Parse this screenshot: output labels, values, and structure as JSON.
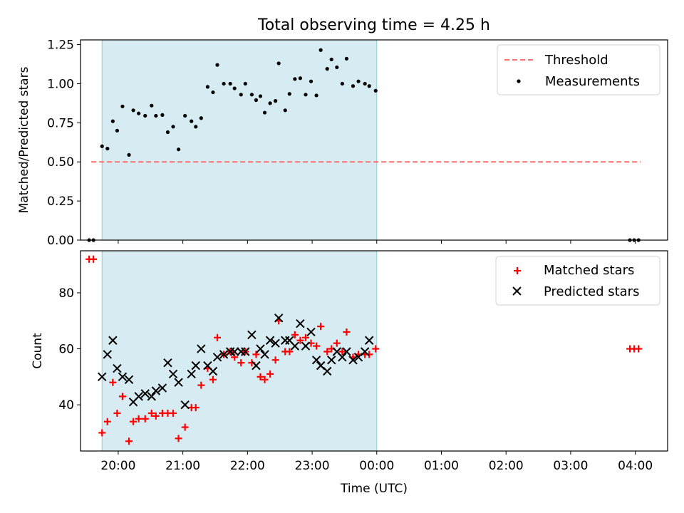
{
  "title": "Total observing time = 4.25 h",
  "colors": {
    "shade": "#add8e6",
    "threshold": "#ff6f6f",
    "measurement": "#000000",
    "matched": "#ff0000",
    "predicted": "#000000"
  },
  "chart_data": [
    {
      "type": "scatter",
      "panel": "top",
      "ylabel": "Matched/Predicted stars",
      "ylim": [
        0,
        1.28
      ],
      "yticks": [
        "0.00",
        "0.25",
        "0.50",
        "0.75",
        "1.00",
        "1.25"
      ],
      "xlim": [
        "19:25",
        "04:30"
      ],
      "shaded_region": [
        "19:45",
        "00:00"
      ],
      "legend": {
        "position": "top-right",
        "entries": [
          "Threshold",
          "Measurements"
        ]
      },
      "threshold": {
        "name": "Threshold",
        "value": 0.5,
        "x_range": [
          "19:35",
          "04:05"
        ],
        "style": "dashed"
      },
      "series": [
        {
          "name": "Measurements",
          "marker": "dot",
          "points": [
            [
              "19:33",
              0.0
            ],
            [
              "19:37",
              0.0
            ],
            [
              "19:45",
              0.6
            ],
            [
              "19:50",
              0.585
            ],
            [
              "19:55",
              0.76
            ],
            [
              "19:59",
              0.7
            ],
            [
              "20:04",
              0.855
            ],
            [
              "20:10",
              0.545
            ],
            [
              "20:14",
              0.83
            ],
            [
              "20:19",
              0.81
            ],
            [
              "20:25",
              0.795
            ],
            [
              "20:31",
              0.86
            ],
            [
              "20:35",
              0.795
            ],
            [
              "20:41",
              0.8
            ],
            [
              "20:46",
              0.69
            ],
            [
              "20:51",
              0.725
            ],
            [
              "20:56",
              0.58
            ],
            [
              "21:02",
              0.795
            ],
            [
              "21:08",
              0.76
            ],
            [
              "21:12",
              0.725
            ],
            [
              "21:17",
              0.78
            ],
            [
              "21:23",
              0.98
            ],
            [
              "21:28",
              0.945
            ],
            [
              "21:32",
              1.12
            ],
            [
              "21:38",
              1.0
            ],
            [
              "21:44",
              1.0
            ],
            [
              "21:48",
              0.97
            ],
            [
              "21:54",
              0.93
            ],
            [
              "21:58",
              1.0
            ],
            [
              "22:04",
              0.93
            ],
            [
              "22:08",
              0.895
            ],
            [
              "22:12",
              0.92
            ],
            [
              "22:16",
              0.815
            ],
            [
              "22:21",
              0.875
            ],
            [
              "22:26",
              0.89
            ],
            [
              "22:29",
              1.13
            ],
            [
              "22:35",
              0.83
            ],
            [
              "22:39",
              0.935
            ],
            [
              "22:44",
              1.03
            ],
            [
              "22:49",
              1.035
            ],
            [
              "22:54",
              0.93
            ],
            [
              "22:59",
              1.015
            ],
            [
              "23:04",
              0.925
            ],
            [
              "23:08",
              1.215
            ],
            [
              "23:14",
              1.095
            ],
            [
              "23:18",
              1.155
            ],
            [
              "23:23",
              1.105
            ],
            [
              "23:28",
              1.0
            ],
            [
              "23:32",
              1.16
            ],
            [
              "23:38",
              0.985
            ],
            [
              "23:43",
              1.015
            ],
            [
              "23:49",
              1.0
            ],
            [
              "23:53",
              0.985
            ],
            [
              "23:59",
              0.955
            ],
            [
              "03:55",
              0.0
            ],
            [
              "03:59",
              0.0
            ],
            [
              "04:03",
              0.0
            ]
          ]
        }
      ]
    },
    {
      "type": "scatter",
      "panel": "bottom",
      "xlabel": "Time (UTC)",
      "ylabel": "Count",
      "ylim": [
        23.5,
        95
      ],
      "yticks": [
        "40",
        "60",
        "80"
      ],
      "xlim": [
        "19:25",
        "04:30"
      ],
      "xticks": [
        "20:00",
        "21:00",
        "22:00",
        "23:00",
        "00:00",
        "01:00",
        "02:00",
        "03:00",
        "04:00"
      ],
      "shaded_region": [
        "19:45",
        "00:00"
      ],
      "legend": {
        "position": "top-right",
        "entries": [
          "Matched stars",
          "Predicted stars"
        ]
      },
      "series": [
        {
          "name": "Matched stars",
          "marker": "plus",
          "points": [
            [
              "19:33",
              92
            ],
            [
              "19:37",
              92
            ],
            [
              "19:45",
              30
            ],
            [
              "19:50",
              34
            ],
            [
              "19:55",
              48
            ],
            [
              "19:59",
              37
            ],
            [
              "20:04",
              43
            ],
            [
              "20:10",
              27
            ],
            [
              "20:14",
              34
            ],
            [
              "20:19",
              35
            ],
            [
              "20:25",
              35
            ],
            [
              "20:31",
              37
            ],
            [
              "20:35",
              36
            ],
            [
              "20:41",
              37
            ],
            [
              "20:46",
              37
            ],
            [
              "20:51",
              37
            ],
            [
              "20:56",
              28
            ],
            [
              "21:02",
              32
            ],
            [
              "21:08",
              39
            ],
            [
              "21:12",
              39
            ],
            [
              "21:17",
              47
            ],
            [
              "21:23",
              53
            ],
            [
              "21:28",
              49
            ],
            [
              "21:32",
              64
            ],
            [
              "21:38",
              58
            ],
            [
              "21:44",
              59
            ],
            [
              "21:48",
              57
            ],
            [
              "21:54",
              55
            ],
            [
              "21:58",
              59
            ],
            [
              "22:04",
              55
            ],
            [
              "22:08",
              58
            ],
            [
              "22:12",
              50
            ],
            [
              "22:16",
              49
            ],
            [
              "22:21",
              51
            ],
            [
              "22:26",
              56
            ],
            [
              "22:29",
              70
            ],
            [
              "22:35",
              59
            ],
            [
              "22:39",
              59
            ],
            [
              "22:44",
              65
            ],
            [
              "22:49",
              63
            ],
            [
              "22:54",
              64
            ],
            [
              "22:59",
              62
            ],
            [
              "23:04",
              61
            ],
            [
              "23:08",
              68
            ],
            [
              "23:14",
              59
            ],
            [
              "23:18",
              60
            ],
            [
              "23:23",
              62
            ],
            [
              "23:28",
              59
            ],
            [
              "23:32",
              66
            ],
            [
              "23:38",
              57
            ],
            [
              "23:43",
              58
            ],
            [
              "23:49",
              58
            ],
            [
              "23:53",
              58
            ],
            [
              "23:59",
              60
            ],
            [
              "03:55",
              60
            ],
            [
              "03:59",
              60
            ],
            [
              "04:03",
              60
            ]
          ]
        },
        {
          "name": "Predicted stars",
          "marker": "x",
          "points": [
            [
              "19:45",
              50
            ],
            [
              "19:50",
              58
            ],
            [
              "19:55",
              63
            ],
            [
              "19:59",
              53
            ],
            [
              "20:04",
              50
            ],
            [
              "20:10",
              49
            ],
            [
              "20:14",
              41
            ],
            [
              "20:19",
              43
            ],
            [
              "20:25",
              44
            ],
            [
              "20:31",
              43
            ],
            [
              "20:35",
              45
            ],
            [
              "20:41",
              46
            ],
            [
              "20:46",
              55
            ],
            [
              "20:51",
              51
            ],
            [
              "20:56",
              48
            ],
            [
              "21:02",
              40
            ],
            [
              "21:08",
              51
            ],
            [
              "21:12",
              54
            ],
            [
              "21:17",
              60
            ],
            [
              "21:23",
              54
            ],
            [
              "21:28",
              52
            ],
            [
              "21:32",
              57
            ],
            [
              "21:38",
              58
            ],
            [
              "21:44",
              59
            ],
            [
              "21:48",
              59
            ],
            [
              "21:54",
              59
            ],
            [
              "21:58",
              59
            ],
            [
              "22:04",
              65
            ],
            [
              "22:08",
              54
            ],
            [
              "22:12",
              60
            ],
            [
              "22:16",
              58
            ],
            [
              "22:21",
              63
            ],
            [
              "22:26",
              62
            ],
            [
              "22:29",
              71
            ],
            [
              "22:35",
              63
            ],
            [
              "22:39",
              63
            ],
            [
              "22:44",
              61
            ],
            [
              "22:49",
              69
            ],
            [
              "22:54",
              61
            ],
            [
              "22:59",
              66
            ],
            [
              "23:04",
              56
            ],
            [
              "23:08",
              54
            ],
            [
              "23:14",
              52
            ],
            [
              "23:18",
              56
            ],
            [
              "23:23",
              59
            ],
            [
              "23:28",
              57
            ],
            [
              "23:32",
              59
            ],
            [
              "23:38",
              56
            ],
            [
              "23:43",
              57
            ],
            [
              "23:49",
              59
            ],
            [
              "23:53",
              63
            ]
          ]
        }
      ]
    }
  ]
}
